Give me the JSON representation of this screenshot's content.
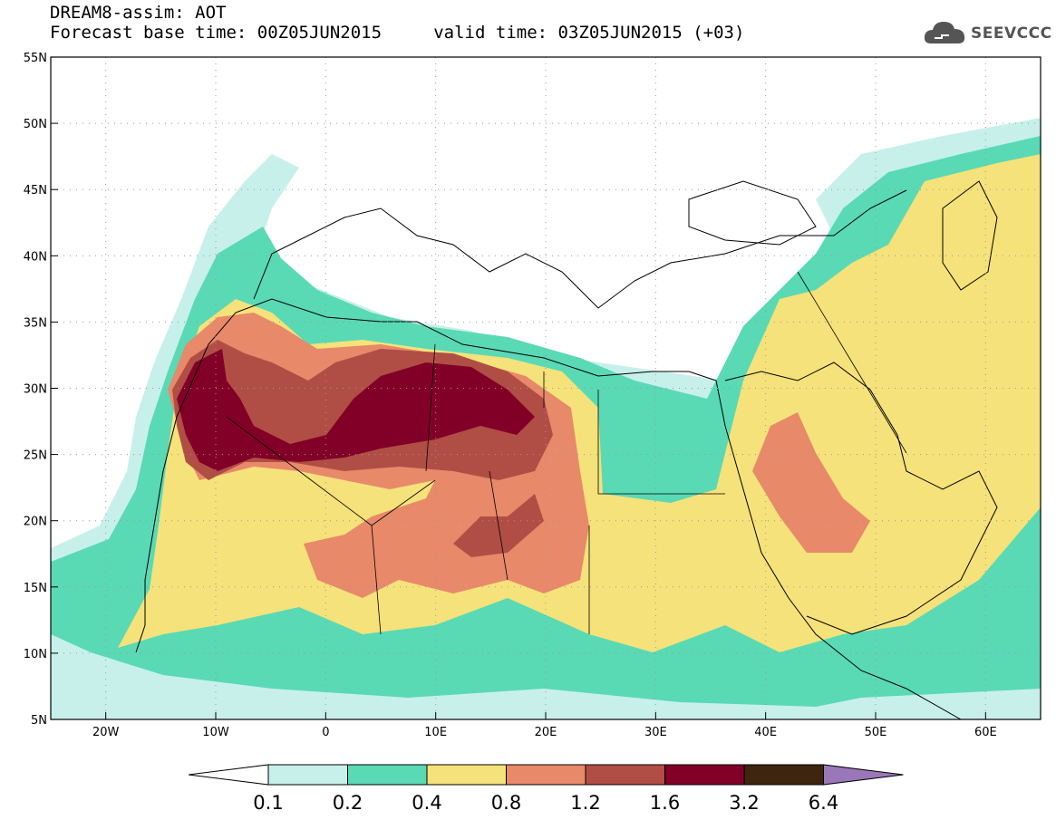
{
  "title": {
    "line1": "DREAM8-assim: AOT",
    "line2": "Forecast base time: 00Z05JUN2015     valid time: 03Z05JUN2015 (+03)"
  },
  "logo": {
    "text": "SEEVCCC",
    "icon": "cloud-icon"
  },
  "map": {
    "lat_range": [
      5,
      55
    ],
    "lon_range": [
      -25,
      65
    ],
    "y_ticks": [
      "55N",
      "50N",
      "45N",
      "40N",
      "35N",
      "30N",
      "25N",
      "20N",
      "15N",
      "10N",
      "5N"
    ],
    "x_ticks": [
      "20W",
      "10W",
      "0",
      "10E",
      "20E",
      "30E",
      "40E",
      "50E",
      "60E"
    ],
    "grid": "dotted"
  },
  "colorbar": {
    "labels": [
      "0.1",
      "0.2",
      "0.4",
      "0.8",
      "1.2",
      "1.6",
      "3.2",
      "6.4"
    ],
    "colors": [
      "#c8f0ea",
      "#5ad9b5",
      "#f5e27a",
      "#e8896a",
      "#b04e45",
      "#820028",
      "#3d2510",
      "#9a77b8"
    ],
    "under_color": "#ffffff",
    "over_color": "#9a77b8"
  },
  "field_colors": {
    "c01": "#c8f0ea",
    "c02": "#5ad9b5",
    "c04": "#f5e27a",
    "c08": "#e8896a",
    "c12": "#b04e45",
    "c16": "#820028"
  }
}
